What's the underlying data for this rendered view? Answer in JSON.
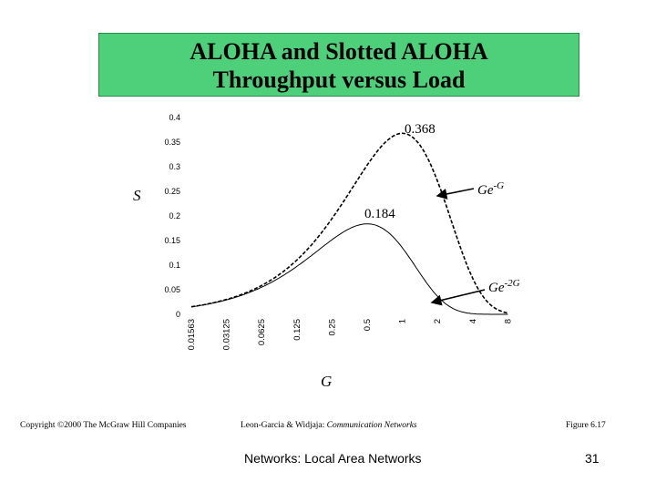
{
  "slide": {
    "title_line1": "ALOHA and Slotted ALOHA",
    "title_line2": "Throughput versus Load",
    "footer_copyright": "Copyright ©2000 The McGraw Hill Companies",
    "footer_authors": "Leon-Garcia & Widjaja:",
    "footer_book": "Communication Networks",
    "footer_figure": "Figure 6.17",
    "footer_topic": "Networks: Local Area Networks",
    "page_number": "31"
  },
  "colors": {
    "title_bg": "#4ecf7a",
    "line": "#000000"
  },
  "chart_data": {
    "type": "line",
    "title": "ALOHA and Slotted ALOHA Throughput versus Load",
    "xlabel": "G",
    "ylabel": "S",
    "categories": [
      "0.01563",
      "0.03125",
      "0.0625",
      "0.125",
      "0.25",
      "0.5",
      "1",
      "2",
      "4",
      "8"
    ],
    "ylim": [
      0,
      0.4
    ],
    "yticks": [
      "0",
      "0.05",
      "0.1",
      "0.15",
      "0.2",
      "0.25",
      "0.3",
      "0.35",
      "0.4"
    ],
    "series": [
      {
        "name": "Ge-G",
        "label_base": "Ge",
        "label_exp": "-G",
        "style": "dashed",
        "points": [
          [
            0.01563,
            0.0154
          ],
          [
            0.03125,
            0.0303
          ],
          [
            0.0625,
            0.0588
          ],
          [
            0.125,
            0.1103
          ],
          [
            0.25,
            0.1947
          ],
          [
            0.5,
            0.3033
          ],
          [
            1,
            0.3679
          ],
          [
            2,
            0.2707
          ],
          [
            4,
            0.0733
          ],
          [
            8,
            0.0027
          ]
        ]
      },
      {
        "name": "Ge-2G",
        "label_base": "Ge",
        "label_exp": "-2G",
        "style": "solid",
        "points": [
          [
            0.01563,
            0.0152
          ],
          [
            0.03125,
            0.0294
          ],
          [
            0.0625,
            0.0551
          ],
          [
            0.125,
            0.0974
          ],
          [
            0.25,
            0.1516
          ],
          [
            0.5,
            0.184
          ],
          [
            1,
            0.1353
          ],
          [
            2,
            0.0366
          ],
          [
            4,
            0.0013
          ],
          [
            8,
            0.0
          ]
        ]
      }
    ],
    "annotations": [
      {
        "text": "0.368",
        "x": 1,
        "y": 0.368
      },
      {
        "text": "0.184",
        "x": 0.5,
        "y": 0.184
      }
    ]
  }
}
